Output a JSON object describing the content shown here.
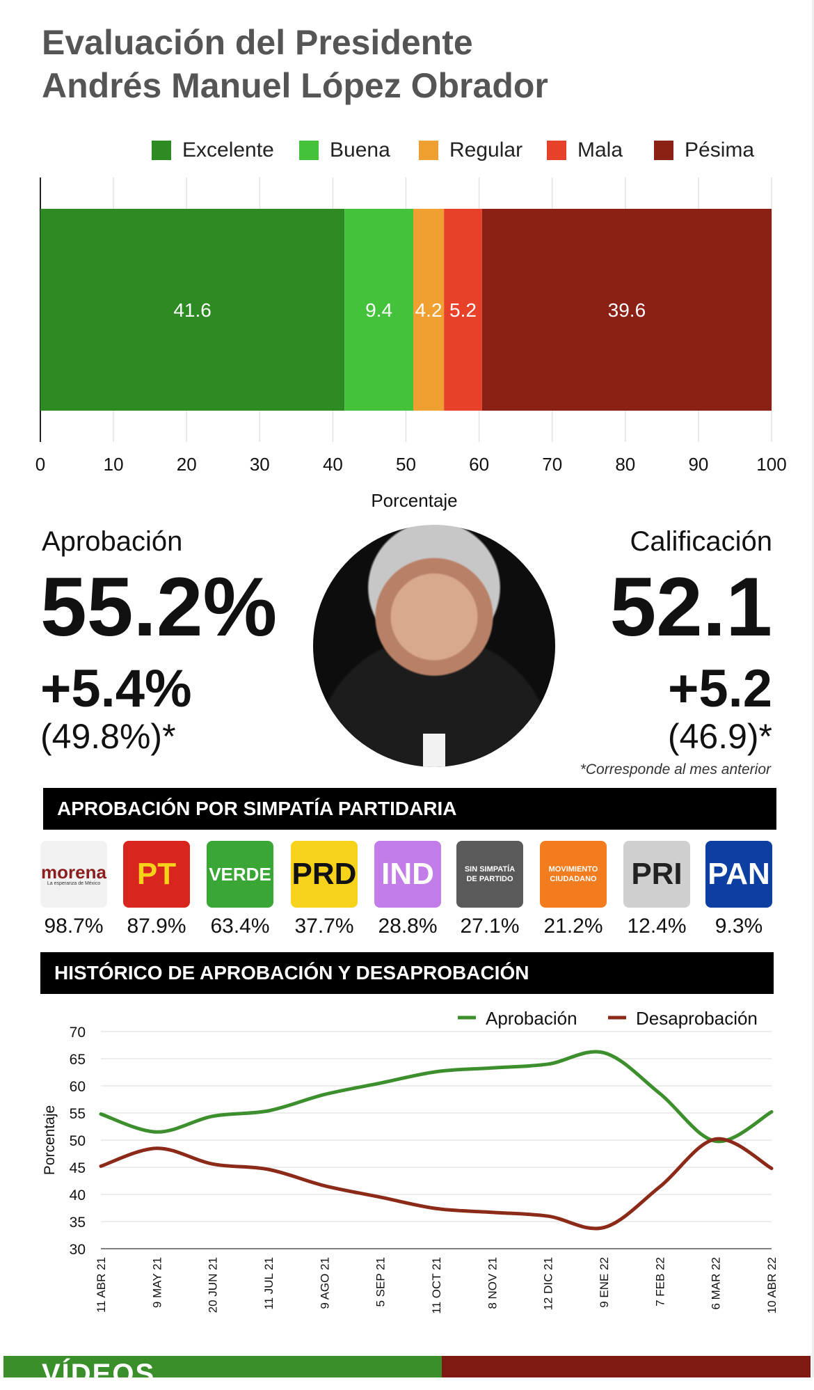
{
  "title_line1": "Evaluación del Presidente",
  "title_line2": "Andrés Manuel López Obrador",
  "colors": {
    "excelente": "#2e8b24",
    "buena": "#44c23c",
    "regular": "#f0a030",
    "mala": "#e8412a",
    "pesima": "#8b2015",
    "approval_line": "#3c8f2c",
    "disapproval_line": "#8b2a18"
  },
  "legend": [
    "Excelente",
    "Buena",
    "Regular",
    "Mala",
    "Pésima"
  ],
  "approval": {
    "label": "Aprobación",
    "value": "55.2%",
    "delta": "+5.4%",
    "previous": "(49.8%)*"
  },
  "rating": {
    "label": "Calificación",
    "value": "52.1",
    "delta": "+5.2",
    "previous": "(46.9)*"
  },
  "footnote": "*Corresponde al mes anterior",
  "party_section_title": "APROBACIÓN POR SIMPATÍA PARTIDARIA",
  "parties": [
    {
      "logo_text": "morena",
      "logo_sub": "La esperanza de México",
      "pct": "98.7%",
      "color": "#f2f2f2",
      "fg": "#8b1e1e"
    },
    {
      "logo_text": "PT",
      "pct": "87.9%",
      "color": "#d8251d",
      "fg": "#f7d21b"
    },
    {
      "logo_text": "VERDE",
      "pct": "63.4%",
      "color": "#3aa635",
      "fg": "#ffffff"
    },
    {
      "logo_text": "PRD",
      "pct": "37.7%",
      "color": "#f7d21b",
      "fg": "#111111"
    },
    {
      "logo_text": "IND",
      "pct": "28.8%",
      "color": "#c27de8",
      "fg": "#ffffff"
    },
    {
      "logo_text": "SIN SIMPATÍA DE PARTIDO",
      "pct": "27.1%",
      "color": "#5a5a5a",
      "fg": "#ffffff"
    },
    {
      "logo_text": "MOVIMIENTO CIUDADANO",
      "pct": "21.2%",
      "color": "#f27c1e",
      "fg": "#ffffff"
    },
    {
      "logo_text": "PRI",
      "pct": "12.4%",
      "color": "#cfcfcf",
      "fg": "#222222"
    },
    {
      "logo_text": "PAN",
      "pct": "9.3%",
      "color": "#0d3fa0",
      "fg": "#ffffff"
    }
  ],
  "history_section_title": "HISTÓRICO DE APROBACIÓN Y DESAPROBACIÓN",
  "bottom_text": "VÍDEOS",
  "chart_data": [
    {
      "type": "bar",
      "orientation": "horizontal-stacked",
      "title": "",
      "xlabel": "Porcentaje",
      "xlim": [
        0,
        100
      ],
      "xticks": [
        0,
        10,
        20,
        30,
        40,
        50,
        60,
        70,
        80,
        90,
        100
      ],
      "grid": true,
      "legend_position": "top",
      "series": [
        {
          "name": "Excelente",
          "values": [
            41.6
          ],
          "label": "41.6"
        },
        {
          "name": "Buena",
          "values": [
            9.4
          ],
          "label": "9.4"
        },
        {
          "name": "Regular",
          "values": [
            4.2
          ],
          "label": "4.2"
        },
        {
          "name": "Mala",
          "values": [
            5.2
          ],
          "label": "5.2"
        },
        {
          "name": "Pésima",
          "values": [
            39.6
          ],
          "label": "39.6"
        }
      ]
    },
    {
      "type": "line",
      "title": "",
      "ylabel": "Porcentaje",
      "ylim": [
        30,
        70
      ],
      "yticks": [
        30,
        35,
        40,
        45,
        50,
        55,
        60,
        65,
        70
      ],
      "grid": true,
      "legend_position": "top-right",
      "x": [
        "11 ABR 21",
        "9 MAY 21",
        "20 JUN 21",
        "11 JUL 21",
        "9 AGO 21",
        "5 SEP 21",
        "11 OCT 21",
        "8 NOV 21",
        "12 DIC 21",
        "9 ENE 22",
        "7 FEB 22",
        "6 MAR 22",
        "10 ABR 22"
      ],
      "series": [
        {
          "name": "Aprobación",
          "values": [
            54.8,
            51.5,
            54.4,
            55.4,
            58.4,
            60.5,
            62.6,
            63.3,
            64.0,
            66.1,
            58.6,
            49.8,
            55.2
          ]
        },
        {
          "name": "Desaprobación",
          "values": [
            45.2,
            48.5,
            45.6,
            44.6,
            41.6,
            39.5,
            37.4,
            36.7,
            36.0,
            33.9,
            41.4,
            50.2,
            44.8
          ]
        }
      ]
    }
  ]
}
